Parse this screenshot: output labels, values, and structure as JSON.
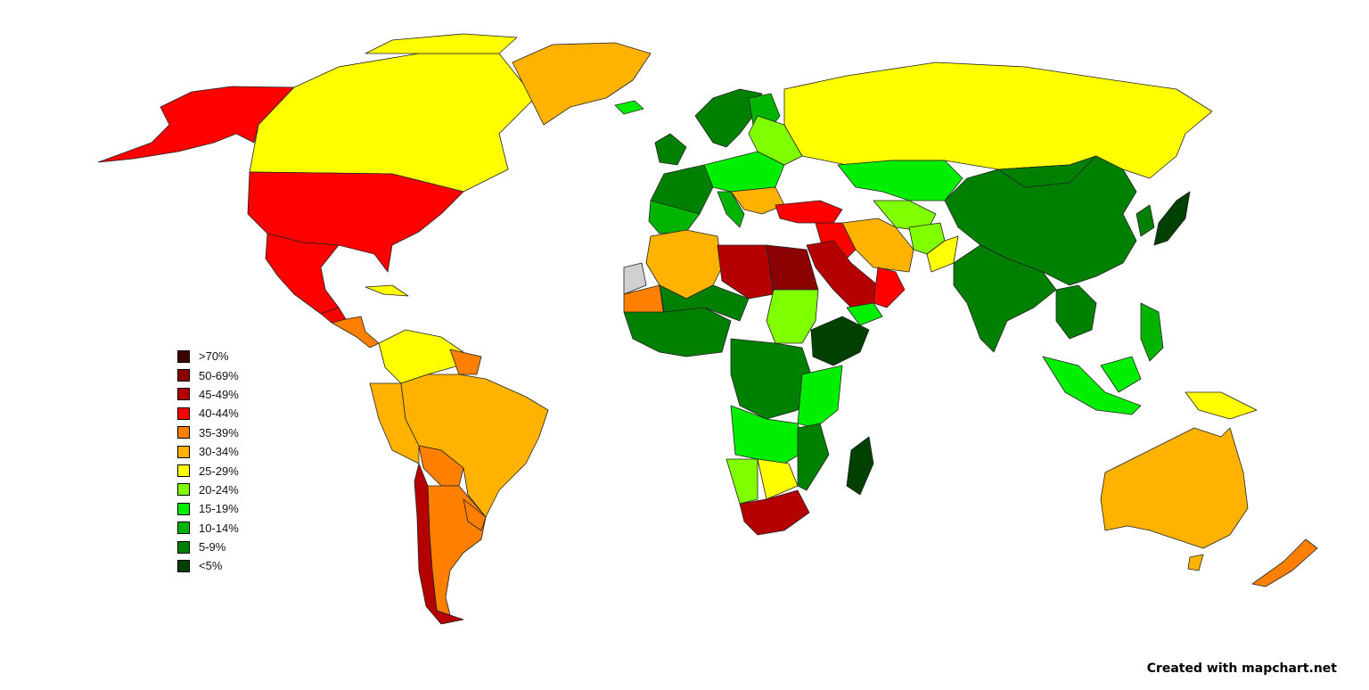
{
  "legend": {
    "items": [
      {
        "label": ">70%",
        "color": "#3d0000"
      },
      {
        "label": "50-69%",
        "color": "#8b0000"
      },
      {
        "label": "45-49%",
        "color": "#b50000"
      },
      {
        "label": "40-44%",
        "color": "#ff0000"
      },
      {
        "label": "35-39%",
        "color": "#ff8000"
      },
      {
        "label": "30-34%",
        "color": "#ffb300"
      },
      {
        "label": "25-29%",
        "color": "#ffff00"
      },
      {
        "label": "20-24%",
        "color": "#80ff00"
      },
      {
        "label": "15-19%",
        "color": "#00ee00"
      },
      {
        "label": "10-14%",
        "color": "#00b400"
      },
      {
        "label": "5-9%",
        "color": "#008000"
      },
      {
        "label": "<5%",
        "color": "#004000"
      }
    ]
  },
  "no_data_color": "#d0d0d0",
  "credit": "Created with mapchart.net"
}
